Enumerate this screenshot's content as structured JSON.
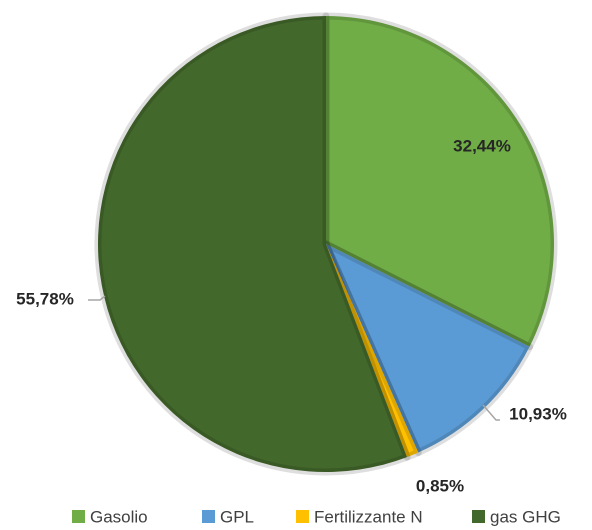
{
  "chart_data": {
    "type": "pie",
    "categories": [
      "Gasolio",
      "GPL",
      "Fertilizzante N",
      "gas GHG"
    ],
    "values": [
      32.44,
      10.93,
      0.85,
      55.78
    ],
    "value_labels": [
      "32,44%",
      "10,93%",
      "0,85%",
      "55,78%"
    ],
    "colors": [
      "#70ad47",
      "#5b9bd5",
      "#ffc000",
      "#43682b"
    ],
    "legend": "bottom"
  }
}
